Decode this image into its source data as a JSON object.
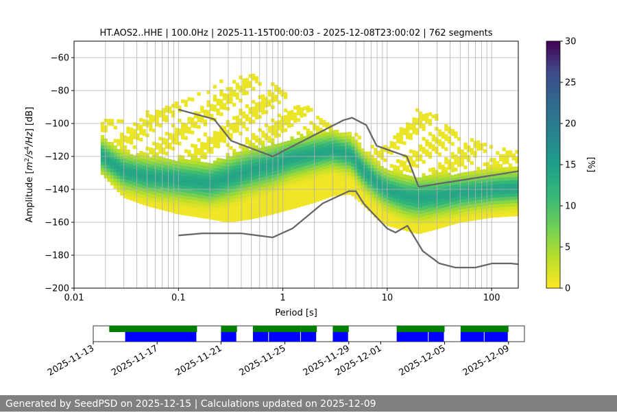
{
  "chart_data": {
    "type": "heatmap",
    "title": "HT.AOS2..HHE | 100.0Hz | 2025-11-15T00:00:03 - 2025-12-08T23:00:02 | 762 segments",
    "xlabel": "Period [s]",
    "ylabel": "Amplitude [m²/s⁴/Hz] [dB]",
    "x_scale": "log",
    "xlim": [
      0.01,
      180
    ],
    "ylim": [
      -200,
      -50
    ],
    "x_ticks": [
      0.01,
      0.1,
      1,
      10,
      100
    ],
    "x_tick_labels": [
      "0.01",
      "0.1",
      "1",
      "10",
      "100"
    ],
    "y_ticks": [
      -200,
      -180,
      -160,
      -140,
      -120,
      -100,
      -80,
      -60
    ],
    "y_tick_labels": [
      "−200",
      "−180",
      "−160",
      "−140",
      "−120",
      "−100",
      "−80",
      "−60"
    ],
    "grid": true,
    "colorbar": {
      "label": "[%]",
      "range": [
        0,
        30
      ],
      "ticks": [
        0,
        5,
        10,
        15,
        20,
        25,
        30
      ],
      "tick_labels": [
        "0",
        "5",
        "10",
        "15",
        "20",
        "25",
        "30"
      ],
      "colormap": "viridis_r"
    },
    "pdf_envelope": {
      "period": [
        0.018,
        0.03,
        0.05,
        0.1,
        0.2,
        0.3,
        0.5,
        0.8,
        1.2,
        2,
        3,
        4.5,
        6,
        8,
        10,
        15,
        20,
        30,
        50,
        100,
        180
      ],
      "upper": [
        -97,
        -99,
        -94,
        -88,
        -80,
        -72,
        -70,
        -77,
        -85,
        -93,
        -101,
        -105,
        -111,
        -117,
        -114,
        -100,
        -90,
        -96,
        -107,
        -115,
        -118
      ],
      "lower": [
        -130,
        -145,
        -150,
        -155,
        -158,
        -160,
        -158,
        -155,
        -152,
        -148,
        -144,
        -143,
        -150,
        -158,
        -162,
        -165,
        -167,
        -164,
        -160,
        -157,
        -156
      ],
      "mode": [
        -120,
        -130,
        -133,
        -135,
        -137,
        -134,
        -129,
        -126,
        -122,
        -119,
        -117,
        -120,
        -130,
        -137,
        -141,
        -145,
        -146,
        -145,
        -143,
        -141,
        -140
      ]
    },
    "nhnm": {
      "period": [
        0.1,
        0.22,
        0.32,
        0.8,
        3.8,
        4.6,
        6.3,
        7.9,
        15.4,
        20
      ],
      "db": [
        -91.5,
        -97.4,
        -110.5,
        -120,
        -98,
        -96.5,
        -101,
        -113.5,
        -120,
        -138.5
      ]
    },
    "nhnm_tail": {
      "period": [
        20,
        180
      ],
      "db": [
        -138.5,
        -129
      ]
    },
    "nlnm": {
      "period": [
        0.1,
        0.17,
        0.4,
        0.8,
        1.24,
        2.4,
        4.3,
        5,
        6,
        10,
        12,
        15.6,
        21.9,
        31.6,
        45,
        70,
        101,
        154,
        180
      ],
      "db": [
        -168,
        -166.7,
        -166.7,
        -169.2,
        -163.7,
        -148.6,
        -141.1,
        -141.1,
        -149,
        -163.8,
        -166.2,
        -162.1,
        -177.5,
        -185,
        -187.5,
        -187.5,
        -185,
        -185,
        -185.5
      ]
    },
    "timeline": {
      "x_tick_labels": [
        "2025-11-13",
        "2025-11-17",
        "2025-11-21",
        "2025-11-25",
        "2025-11-29",
        "2025-12-01",
        "2025-12-05",
        "2025-12-09"
      ],
      "x_tick_dates": [
        "2025-11-13",
        "2025-11-17",
        "2025-11-21",
        "2025-11-25",
        "2025-11-29",
        "2025-12-01",
        "2025-12-05",
        "2025-12-09"
      ],
      "range": [
        "2025-11-13",
        "2025-12-10"
      ],
      "green_segments": [
        [
          "2025-11-14",
          "2025-11-19.5"
        ],
        [
          "2025-11-21",
          "2025-11-22"
        ],
        [
          "2025-11-23",
          "2025-11-26"
        ],
        [
          "2025-11-26",
          "2025-11-27"
        ],
        [
          "2025-11-28",
          "2025-11-29"
        ],
        [
          "2025-12-02",
          "2025-12-05"
        ],
        [
          "2025-12-06",
          "2025-12-09"
        ]
      ],
      "blue_segments": [
        [
          "2025-11-15",
          "2025-11-19.5"
        ],
        [
          "2025-11-21",
          "2025-11-22"
        ],
        [
          "2025-11-23",
          "2025-11-24"
        ],
        [
          "2025-11-24",
          "2025-11-26"
        ],
        [
          "2025-11-26",
          "2025-11-27"
        ],
        [
          "2025-11-28",
          "2025-11-29"
        ],
        [
          "2025-12-02",
          "2025-12-04"
        ],
        [
          "2025-12-04",
          "2025-12-05"
        ],
        [
          "2025-12-06",
          "2025-12-07.5"
        ],
        [
          "2025-12-07.5",
          "2025-12-09"
        ]
      ],
      "colors": {
        "green": "#008000",
        "blue": "#0000ff"
      }
    }
  },
  "footer": {
    "text": "Generated by SeedPSD on 2025-12-15 | Calculations updated on 2025-12-09"
  },
  "colors": {
    "nm_line": "#666666",
    "footer_bg": "#808080"
  }
}
